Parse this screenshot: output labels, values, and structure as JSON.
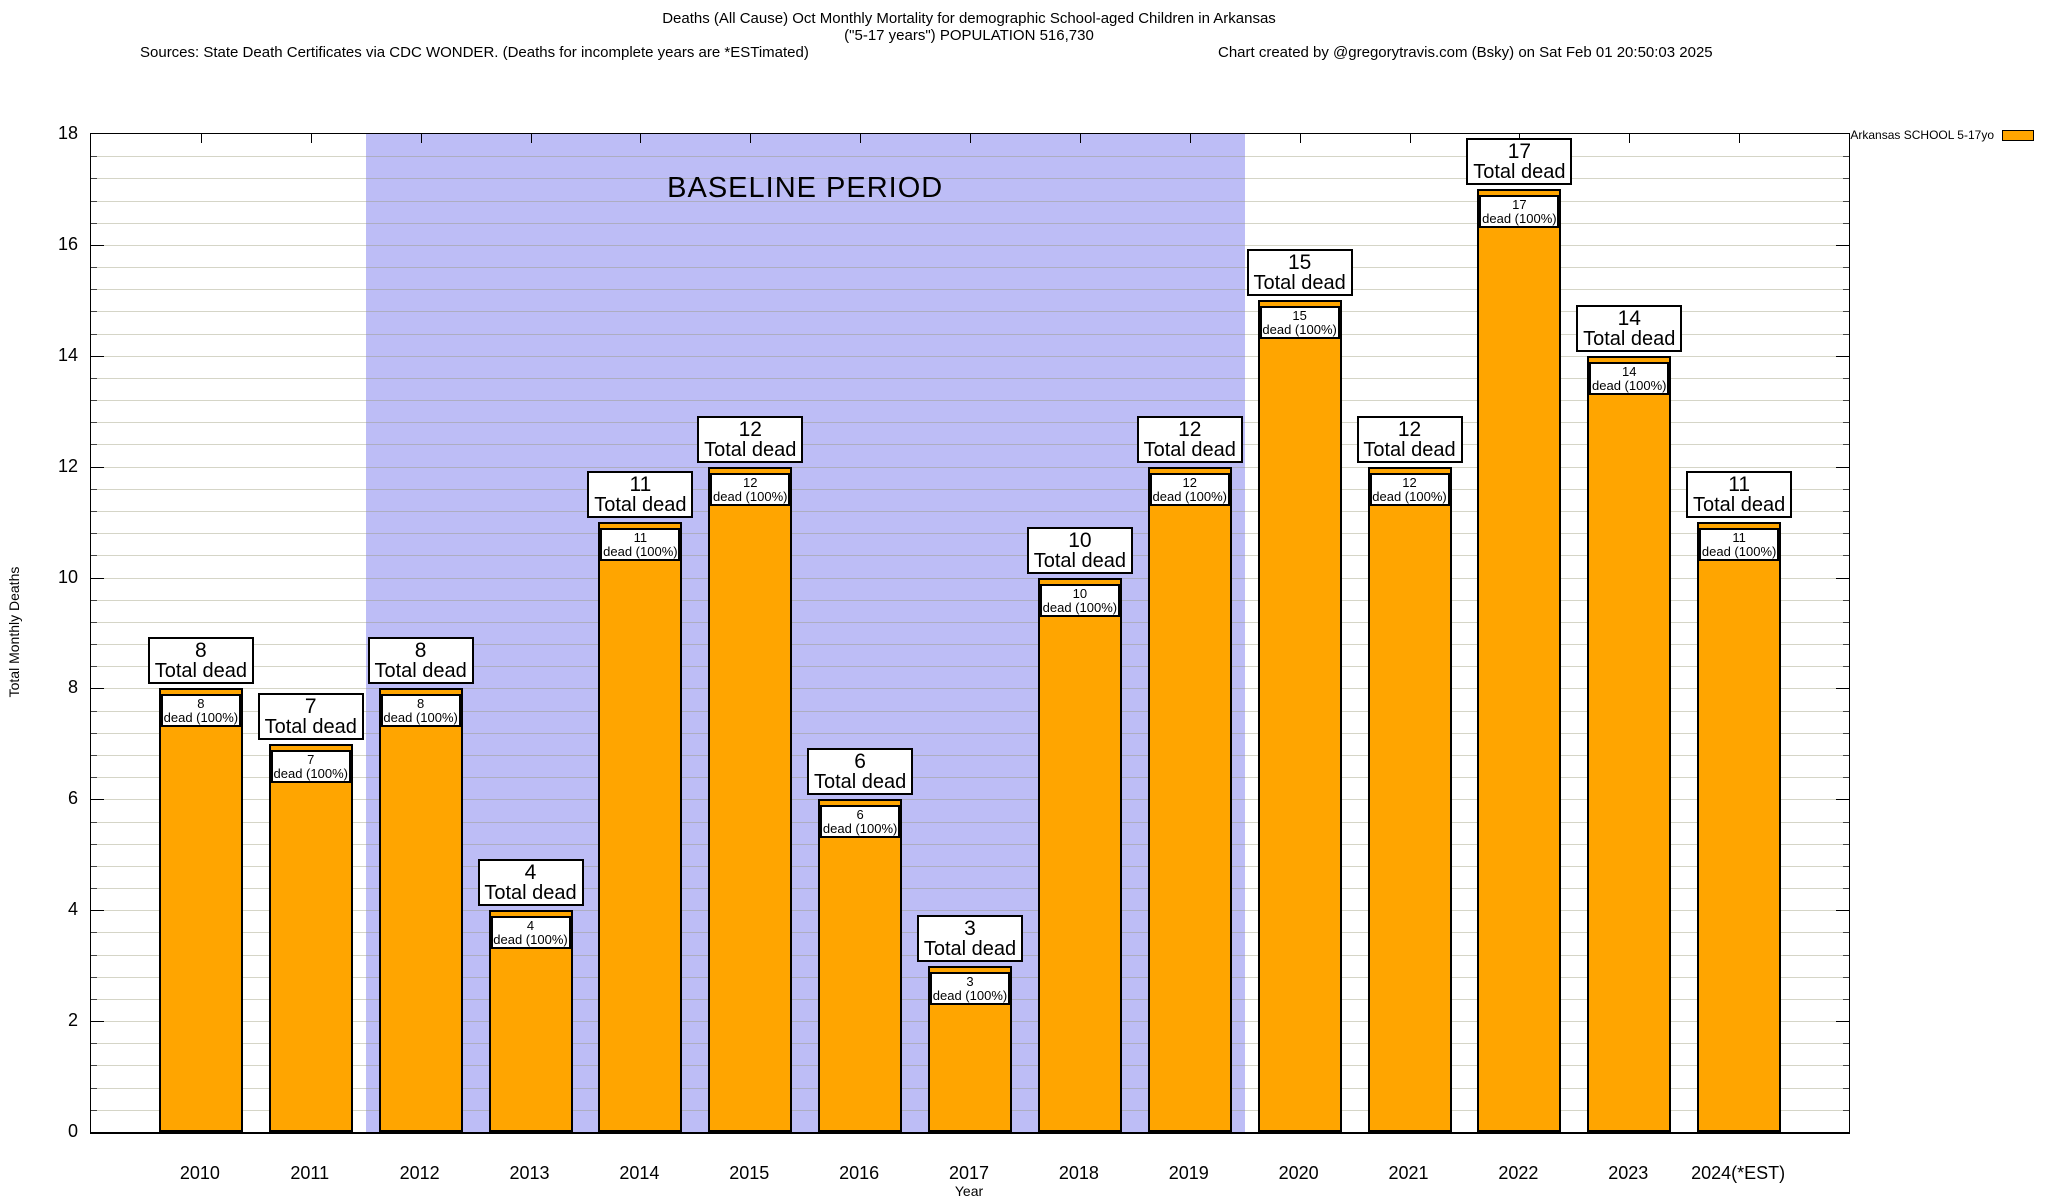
{
  "header": {
    "title_line1": "Deaths (All Cause) Oct Monthly Mortality for demographic School-aged Children in Arkansas",
    "title_line2": "(\"5-17 years\") POPULATION 516,730",
    "sources": "Sources: State Death Certificates via CDC WONDER. (Deaths for incomplete years are *ESTimated)",
    "credit": "Chart created by @gregorytravis.com (Bsky) on Sat Feb 01 20:50:03 2025"
  },
  "legend": {
    "label": "Arkansas SCHOOL 5-17yo",
    "swatch_color": "#ffa500"
  },
  "baseline_band": {
    "label": "BASELINE PERIOD",
    "from_year": "2012",
    "to_year": "2019",
    "color": "#bdbdf6"
  },
  "axes": {
    "y_label": "Total Monthly Deaths",
    "x_label": "Year",
    "y_ticks": [
      0,
      2,
      4,
      6,
      8,
      10,
      12,
      14,
      16,
      18
    ],
    "y_minor_step": 0.4,
    "ylim": [
      0,
      18
    ]
  },
  "chart_data": {
    "type": "bar",
    "title": "Deaths (All Cause) Oct Monthly Mortality for demographic School-aged Children in Arkansas (\"5-17 years\") POPULATION 516,730",
    "xlabel": "Year",
    "ylabel": "Total Monthly Deaths",
    "ylim": [
      0,
      18
    ],
    "grid": true,
    "legend_position": "top-right",
    "series_name": "Arkansas SCHOOL 5-17yo",
    "categories": [
      "2010",
      "2011",
      "2012",
      "2013",
      "2014",
      "2015",
      "2016",
      "2017",
      "2018",
      "2019",
      "2020",
      "2021",
      "2022",
      "2023",
      "2024(*EST)"
    ],
    "values": [
      8,
      7,
      8,
      4,
      11,
      12,
      6,
      3,
      10,
      12,
      15,
      12,
      17,
      14,
      11
    ],
    "above_label": "Total dead",
    "inner_label": "dead (100%)",
    "bar_color": "#ffa500",
    "baseline_period_years": [
      "2012",
      "2013",
      "2014",
      "2015",
      "2016",
      "2017",
      "2018",
      "2019"
    ]
  }
}
